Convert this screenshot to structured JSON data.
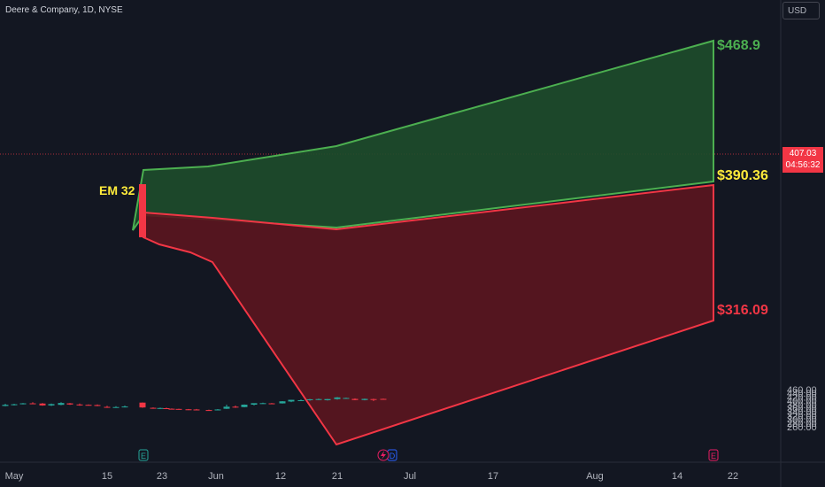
{
  "header": {
    "symbol_title": "Deere & Company, 1D, NYSE"
  },
  "currency": "USD",
  "last_price": {
    "price": "407.03",
    "countdown": "04:56:32"
  },
  "chart_data": {
    "type": "candlestick",
    "y_axis": {
      "ticks": [
        260,
        280,
        300,
        320,
        340,
        360,
        380,
        400,
        420,
        440,
        460
      ],
      "range": [
        242,
        484
      ]
    },
    "x_axis": {
      "ticks": [
        "May",
        "15",
        "23",
        "Jun",
        "12",
        "21",
        "Jul",
        "17",
        "Aug",
        "14",
        "22"
      ]
    },
    "candles": [
      [
        372,
        384,
        370,
        378
      ],
      [
        378,
        384,
        375,
        381
      ],
      [
        383,
        388,
        380,
        386
      ],
      [
        386,
        392,
        382,
        384
      ],
      [
        385,
        388,
        373,
        375
      ],
      [
        375,
        385,
        372,
        382
      ],
      [
        378,
        392,
        376,
        388
      ],
      [
        386,
        388,
        378,
        380
      ],
      [
        380,
        385,
        373,
        378
      ],
      [
        378,
        380,
        375,
        377
      ],
      [
        377,
        380,
        371,
        372
      ],
      [
        367,
        373,
        362,
        363
      ],
      [
        366,
        371,
        363,
        366
      ],
      [
        366,
        374,
        364,
        369
      ],
      [
        390,
        391,
        362,
        364
      ],
      [
        362,
        364,
        357,
        359
      ],
      [
        359,
        363,
        356,
        361
      ],
      [
        360,
        363,
        355,
        357
      ],
      [
        357,
        359,
        354,
        356
      ],
      [
        356,
        357,
        352,
        355
      ],
      [
        354,
        356,
        350,
        353
      ],
      [
        353,
        356,
        350,
        351
      ],
      [
        350,
        352,
        346,
        348
      ],
      [
        349,
        355,
        348,
        353
      ],
      [
        357,
        379,
        356,
        368
      ],
      [
        368,
        374,
        362,
        366
      ],
      [
        366,
        380,
        365,
        379
      ],
      [
        379,
        386,
        375,
        387
      ],
      [
        385,
        390,
        383,
        387
      ],
      [
        386,
        388,
        382,
        383
      ],
      [
        386,
        398,
        385,
        397
      ],
      [
        396,
        405,
        393,
        405
      ],
      [
        401,
        407,
        398,
        403
      ],
      [
        403,
        410,
        400,
        408
      ],
      [
        408,
        412,
        404,
        409
      ],
      [
        403,
        410,
        401,
        409
      ],
      [
        409,
        420,
        406,
        418
      ],
      [
        414,
        417,
        412,
        415
      ],
      [
        410,
        413,
        403,
        404
      ],
      [
        404,
        412,
        402,
        410
      ],
      [
        409,
        411,
        398,
        408
      ],
      [
        410,
        412,
        406,
        407
      ]
    ],
    "up_color": "#26a69a",
    "down_color": "#f23645",
    "expected_move": {
      "label": "EM 32",
      "upper_value": "$468.9",
      "mid_value": "$390.36",
      "lower_value": "$316.09",
      "upper_color": "#4caf50",
      "lower_color": "#f23645"
    },
    "event_markers": [
      {
        "letter": "E",
        "color": "#26a69a"
      },
      {
        "letter": "D",
        "color": "#2962ff"
      },
      {
        "letter": "E",
        "color": "#e91e63"
      }
    ]
  }
}
